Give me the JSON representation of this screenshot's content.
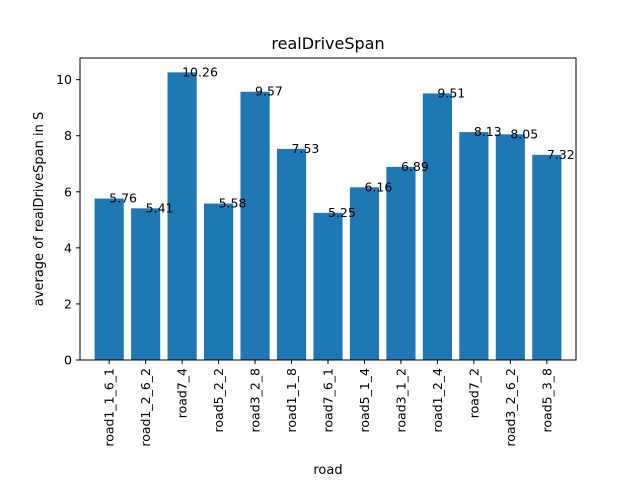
{
  "chart_data": {
    "type": "bar",
    "title": "realDriveSpan",
    "xlabel": "road",
    "ylabel": "average of realDriveSpan in S",
    "categories": [
      "road1_1_6_1",
      "road1_2_6_2",
      "road7_4",
      "road5_2_2",
      "road3_2_8",
      "road1_1_8",
      "road7_6_1",
      "road5_1_4",
      "road3_1_2",
      "road1_2_4",
      "road7_2",
      "road3_2_6_2",
      "road5_3_8"
    ],
    "values": [
      5.76,
      5.41,
      10.26,
      5.58,
      9.57,
      7.53,
      5.25,
      6.16,
      6.89,
      9.51,
      8.13,
      8.05,
      7.32
    ],
    "data_labels": [
      "5.76",
      "5.41",
      "10.26",
      "5.58",
      "9.57",
      "7.53",
      "5.25",
      "6.16",
      "6.89",
      "9.51",
      "8.13",
      "8.05",
      "7.32"
    ],
    "ylim": [
      0,
      10.773
    ],
    "yticks": [
      0,
      2,
      4,
      6,
      8,
      10
    ],
    "grid": false,
    "bar_color": "#1f77b4"
  }
}
